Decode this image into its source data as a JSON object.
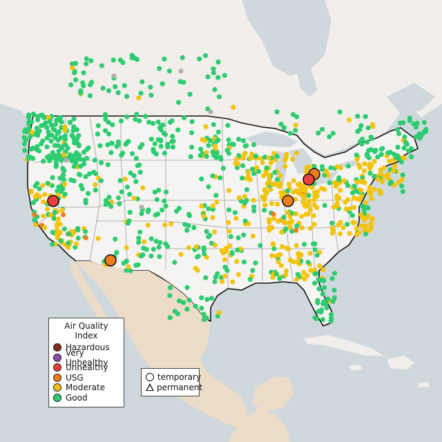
{
  "legend": {
    "title": "Air Quality Index",
    "categories": [
      {
        "label": "Hazardous",
        "color": "#7e2a1e"
      },
      {
        "label": "Very Unhealthy",
        "color": "#8e4aa8"
      },
      {
        "label": "Unhealthy",
        "color": "#e6423a"
      },
      {
        "label": "USG",
        "color": "#f07d1c"
      },
      {
        "label": "Moderate",
        "color": "#f2c40f"
      },
      {
        "label": "Good",
        "color": "#2ecc71"
      }
    ],
    "monitor_types": [
      {
        "label": "temporary",
        "shape": "circle"
      },
      {
        "label": "permanent",
        "shape": "triangle"
      }
    ]
  },
  "colors": {
    "water": "#cfd8dc",
    "land": "#f2efec",
    "us_land": "#f6f4f2",
    "mexico": "#ecdcc8",
    "border": "#111111",
    "state_line": "#9b9b9b"
  }
}
